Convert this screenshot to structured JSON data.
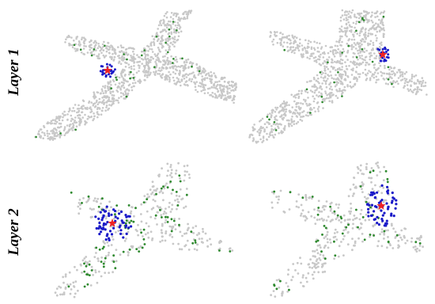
{
  "rows": [
    {
      "label": "Layer 1"
    },
    {
      "label": "Layer 2"
    }
  ],
  "colors": {
    "background_point": "#c8c8c8",
    "neighbor_point": "#1a1ac8",
    "dilated_point": "#2e8b2e",
    "query_star": "#ee2222"
  }
}
